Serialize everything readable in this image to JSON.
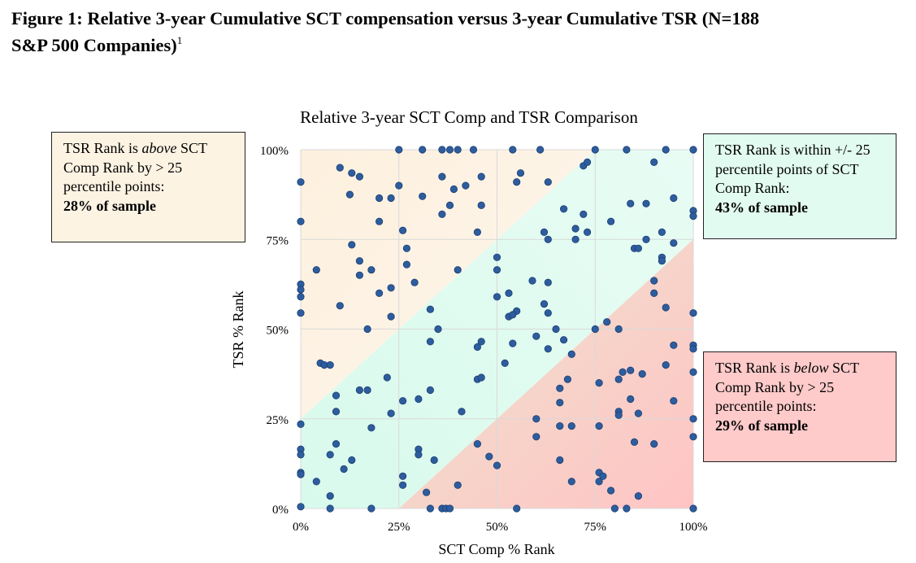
{
  "figure": {
    "heading_line1": "Figure 1: Relative 3-year Cumulative SCT compensation versus 3-year Cumulative TSR (N=188",
    "heading_line2": "S&P 500 Companies)",
    "footnote_marker": "1"
  },
  "callouts": {
    "above": {
      "pre": "TSR Rank is ",
      "emph": "above",
      "post": " SCT Comp Rank by > 25 percentile points:",
      "share": "28% of sample",
      "color": "#fdf3e3"
    },
    "within": {
      "text": "TSR Rank is within +/- 25 percentile points of SCT Comp Rank:",
      "share": "43% of sample",
      "color": "#e2fbf0"
    },
    "below": {
      "pre": "TSR Rank is ",
      "emph": "below",
      "post": " SCT Comp Rank by > 25 percentile points:",
      "share": "29% of sample",
      "color": "#fecaca"
    }
  },
  "colors": {
    "point": "#2e5d9e",
    "point_edge": "#1b3f73",
    "grid": "#d9d9d9",
    "region_above": "#fdf1e0",
    "region_within": "#dcfbee",
    "region_below": "#fec7c7"
  },
  "chart_data": {
    "type": "scatter",
    "title": "Relative 3-year SCT Comp and TSR Comparison",
    "xlabel": "SCT Comp % Rank",
    "ylabel": "TSR % Rank",
    "xlim": [
      0,
      100
    ],
    "ylim": [
      0,
      100
    ],
    "x_ticks": [
      0,
      25,
      50,
      75,
      100
    ],
    "y_ticks": [
      0,
      25,
      50,
      75,
      100
    ],
    "x_tick_labels": [
      "0%",
      "25%",
      "50%",
      "75%",
      "100%"
    ],
    "y_tick_labels": [
      "0%",
      "25%",
      "50%",
      "75%",
      "100%"
    ],
    "grid": true,
    "band_width": 25,
    "points": [
      [
        25,
        100
      ],
      [
        31,
        100
      ],
      [
        36,
        100
      ],
      [
        38,
        100
      ],
      [
        40,
        100
      ],
      [
        44,
        100
      ],
      [
        54,
        100
      ],
      [
        61,
        100
      ],
      [
        83,
        100
      ],
      [
        93,
        100
      ],
      [
        100,
        100
      ],
      [
        10,
        95
      ],
      [
        13,
        93.5
      ],
      [
        15,
        92.5
      ],
      [
        0,
        91
      ],
      [
        36,
        92.5
      ],
      [
        46,
        92.5
      ],
      [
        56,
        93.5
      ],
      [
        72,
        95.5
      ],
      [
        73,
        96.5
      ],
      [
        90,
        96.5
      ],
      [
        12.5,
        87.5
      ],
      [
        20,
        86.5
      ],
      [
        23,
        86.5
      ],
      [
        25,
        90
      ],
      [
        39,
        89
      ],
      [
        42,
        90
      ],
      [
        55,
        91
      ],
      [
        63,
        91
      ],
      [
        75,
        100
      ],
      [
        31,
        87
      ],
      [
        0,
        80
      ],
      [
        20,
        80
      ],
      [
        26,
        77.5
      ],
      [
        36,
        82
      ],
      [
        38,
        84.5
      ],
      [
        46,
        84.5
      ],
      [
        45,
        77
      ],
      [
        67,
        83.5
      ],
      [
        70,
        78
      ],
      [
        72,
        82
      ],
      [
        79,
        80
      ],
      [
        84,
        85
      ],
      [
        88,
        85
      ],
      [
        95,
        86.5
      ],
      [
        100,
        83
      ],
      [
        100,
        81.5
      ],
      [
        62,
        77
      ],
      [
        63,
        75
      ],
      [
        70,
        75
      ],
      [
        73,
        77
      ],
      [
        92,
        77
      ],
      [
        95,
        74
      ],
      [
        85,
        72.5
      ],
      [
        88,
        75
      ],
      [
        92,
        70
      ],
      [
        92,
        69
      ],
      [
        86,
        72.5
      ],
      [
        4,
        66.5
      ],
      [
        13,
        73.5
      ],
      [
        15,
        69
      ],
      [
        15,
        65
      ],
      [
        18,
        66.5
      ],
      [
        27,
        72.5
      ],
      [
        27,
        68
      ],
      [
        20,
        60
      ],
      [
        23,
        61.5
      ],
      [
        29,
        63
      ],
      [
        0,
        62.5
      ],
      [
        0,
        61
      ],
      [
        0,
        59
      ],
      [
        10,
        56.5
      ],
      [
        0,
        54.5
      ],
      [
        23,
        53.5
      ],
      [
        33,
        55.5
      ],
      [
        35,
        50
      ],
      [
        50,
        70
      ],
      [
        50,
        66.5
      ],
      [
        40,
        66.5
      ],
      [
        50,
        59
      ],
      [
        53,
        60
      ],
      [
        53,
        53.5
      ],
      [
        55,
        55
      ],
      [
        54,
        54
      ],
      [
        59,
        63.5
      ],
      [
        63,
        63
      ],
      [
        62,
        57
      ],
      [
        63,
        54.5
      ],
      [
        65,
        50
      ],
      [
        60,
        48
      ],
      [
        46,
        46.5
      ],
      [
        45,
        45
      ],
      [
        54,
        46
      ],
      [
        63,
        44.5
      ],
      [
        67,
        47
      ],
      [
        78,
        52
      ],
      [
        75,
        50
      ],
      [
        81,
        50
      ],
      [
        90,
        63.5
      ],
      [
        90,
        60
      ],
      [
        93,
        56
      ],
      [
        100,
        54.5
      ],
      [
        17,
        50
      ],
      [
        33,
        46.5
      ],
      [
        93,
        40
      ],
      [
        95,
        45.5
      ],
      [
        100,
        45.5
      ],
      [
        100,
        44.5
      ],
      [
        100,
        38
      ],
      [
        82,
        38
      ],
      [
        84,
        38.5
      ],
      [
        87,
        37.5
      ],
      [
        5,
        40.5
      ],
      [
        6,
        40
      ],
      [
        7.5,
        40
      ],
      [
        9,
        31.5
      ],
      [
        9,
        27
      ],
      [
        15,
        33
      ],
      [
        17,
        33
      ],
      [
        22,
        36.5
      ],
      [
        23,
        26.5
      ],
      [
        26,
        30
      ],
      [
        30,
        30.5
      ],
      [
        33,
        33
      ],
      [
        41,
        27
      ],
      [
        45,
        36
      ],
      [
        46,
        36.5
      ],
      [
        52,
        40.5
      ],
      [
        69,
        43
      ],
      [
        66,
        33.5
      ],
      [
        68,
        36
      ],
      [
        66,
        29.5
      ],
      [
        76,
        35
      ],
      [
        81,
        36
      ],
      [
        84,
        30.5
      ],
      [
        81,
        27
      ],
      [
        81,
        26
      ],
      [
        86,
        26.5
      ],
      [
        95,
        30
      ],
      [
        0,
        23.5
      ],
      [
        0,
        16.5
      ],
      [
        0,
        15
      ],
      [
        0,
        10
      ],
      [
        0,
        9.5
      ],
      [
        4,
        7.5
      ],
      [
        7.5,
        15
      ],
      [
        9,
        18
      ],
      [
        11,
        11
      ],
      [
        13,
        13.5
      ],
      [
        18,
        22.5
      ],
      [
        30,
        16.5
      ],
      [
        30,
        15
      ],
      [
        26,
        9
      ],
      [
        26,
        6.5
      ],
      [
        32,
        4.5
      ],
      [
        34,
        13.5
      ],
      [
        40,
        6.5
      ],
      [
        36,
        0
      ],
      [
        37,
        0
      ],
      [
        38,
        0
      ],
      [
        45,
        18
      ],
      [
        48,
        14.5
      ],
      [
        50,
        12
      ],
      [
        55,
        0
      ],
      [
        60,
        25
      ],
      [
        60,
        20
      ],
      [
        66,
        23
      ],
      [
        66,
        13.5
      ],
      [
        69,
        23
      ],
      [
        69,
        7.5
      ],
      [
        76,
        23
      ],
      [
        76,
        10
      ],
      [
        76,
        7.5
      ],
      [
        77,
        9
      ],
      [
        79,
        5
      ],
      [
        80,
        0
      ],
      [
        83,
        0
      ],
      [
        85,
        18.5
      ],
      [
        86,
        3.5
      ],
      [
        90,
        18
      ],
      [
        100,
        25
      ],
      [
        100,
        20
      ],
      [
        100,
        0
      ],
      [
        0,
        0.5
      ],
      [
        7.5,
        3.5
      ],
      [
        7.5,
        0
      ],
      [
        18,
        0
      ],
      [
        33,
        0
      ]
    ]
  }
}
